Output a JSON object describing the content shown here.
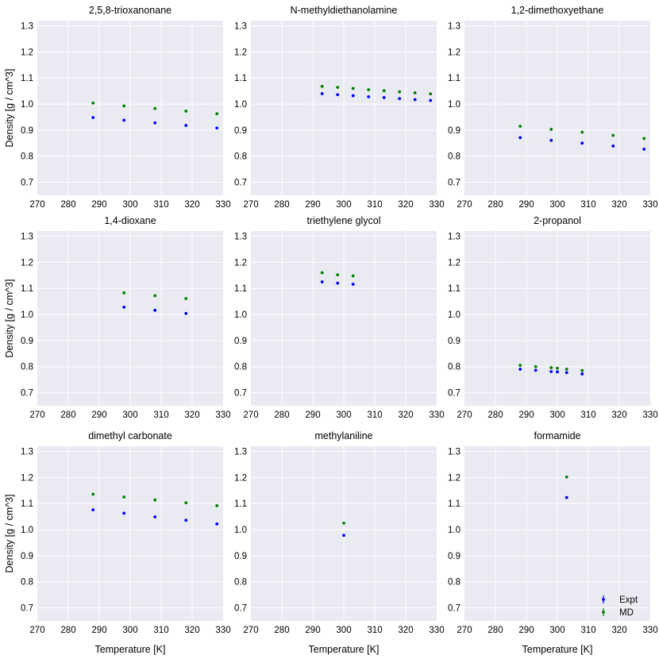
{
  "figure": {
    "xlabel": "Temperature [K]",
    "ylabel": "Density [g / cm^3]"
  },
  "legend": {
    "entries": [
      {
        "label": "Expt",
        "color": "#0000ff"
      },
      {
        "label": "MD",
        "color": "#008000"
      }
    ],
    "location": "lower-right"
  },
  "chart_data": [
    {
      "type": "scatter",
      "title": "2,5,8-trioxanonane",
      "xlim": [
        270,
        330
      ],
      "ylim": [
        0.65,
        1.32
      ],
      "xticks": [
        270,
        280,
        290,
        300,
        310,
        320,
        330
      ],
      "yticks": [
        0.7,
        0.8,
        0.9,
        1.0,
        1.1,
        1.2,
        1.3
      ],
      "series": [
        {
          "name": "Expt",
          "color": "#0000ff",
          "x": [
            288,
            298,
            308,
            318,
            328
          ],
          "y": [
            0.948,
            0.938,
            0.928,
            0.918,
            0.908
          ]
        },
        {
          "name": "MD",
          "color": "#008000",
          "x": [
            288,
            298,
            308,
            318,
            328
          ],
          "y": [
            1.004,
            0.993,
            0.983,
            0.973,
            0.963
          ]
        }
      ]
    },
    {
      "type": "scatter",
      "title": "N-methyldiethanolamine",
      "xlim": [
        270,
        330
      ],
      "ylim": [
        0.65,
        1.32
      ],
      "xticks": [
        270,
        280,
        290,
        300,
        310,
        320,
        330
      ],
      "yticks": [
        0.7,
        0.8,
        0.9,
        1.0,
        1.1,
        1.2,
        1.3
      ],
      "series": [
        {
          "name": "Expt",
          "color": "#0000ff",
          "x": [
            293,
            298,
            303,
            308,
            313,
            318,
            323,
            328
          ],
          "y": [
            1.04,
            1.036,
            1.032,
            1.028,
            1.025,
            1.021,
            1.017,
            1.014
          ]
        },
        {
          "name": "MD",
          "color": "#008000",
          "x": [
            293,
            298,
            303,
            308,
            313,
            318,
            323,
            328
          ],
          "y": [
            1.068,
            1.064,
            1.06,
            1.055,
            1.051,
            1.047,
            1.043,
            1.039
          ]
        }
      ]
    },
    {
      "type": "scatter",
      "title": "1,2-dimethoxyethane",
      "xlim": [
        270,
        330
      ],
      "ylim": [
        0.65,
        1.32
      ],
      "xticks": [
        270,
        280,
        290,
        300,
        310,
        320,
        330
      ],
      "yticks": [
        0.7,
        0.8,
        0.9,
        1.0,
        1.1,
        1.2,
        1.3
      ],
      "series": [
        {
          "name": "Expt",
          "color": "#0000ff",
          "x": [
            288,
            298,
            308,
            318,
            328
          ],
          "y": [
            0.871,
            0.861,
            0.85,
            0.839,
            0.827
          ]
        },
        {
          "name": "MD",
          "color": "#008000",
          "x": [
            288,
            298,
            308,
            318,
            328
          ],
          "y": [
            0.915,
            0.903,
            0.892,
            0.88,
            0.868
          ]
        }
      ]
    },
    {
      "type": "scatter",
      "title": "1,4-dioxane",
      "xlim": [
        270,
        330
      ],
      "ylim": [
        0.65,
        1.32
      ],
      "xticks": [
        270,
        280,
        290,
        300,
        310,
        320,
        330
      ],
      "yticks": [
        0.7,
        0.8,
        0.9,
        1.0,
        1.1,
        1.2,
        1.3
      ],
      "series": [
        {
          "name": "Expt",
          "color": "#0000ff",
          "x": [
            298,
            308,
            318
          ],
          "y": [
            1.028,
            1.016,
            1.004
          ]
        },
        {
          "name": "MD",
          "color": "#008000",
          "x": [
            298,
            308,
            318
          ],
          "y": [
            1.083,
            1.072,
            1.061
          ]
        }
      ]
    },
    {
      "type": "scatter",
      "title": "triethylene glycol",
      "xlim": [
        270,
        330
      ],
      "ylim": [
        0.65,
        1.32
      ],
      "xticks": [
        270,
        280,
        290,
        300,
        310,
        320,
        330
      ],
      "yticks": [
        0.7,
        0.8,
        0.9,
        1.0,
        1.1,
        1.2,
        1.3
      ],
      "series": [
        {
          "name": "Expt",
          "color": "#0000ff",
          "x": [
            293,
            298,
            303
          ],
          "y": [
            1.125,
            1.12,
            1.116
          ]
        },
        {
          "name": "MD",
          "color": "#008000",
          "x": [
            293,
            298,
            303
          ],
          "y": [
            1.16,
            1.152,
            1.148
          ]
        }
      ]
    },
    {
      "type": "scatter",
      "title": "2-propanol",
      "xlim": [
        270,
        330
      ],
      "ylim": [
        0.65,
        1.32
      ],
      "xticks": [
        270,
        280,
        290,
        300,
        310,
        320,
        330
      ],
      "yticks": [
        0.7,
        0.8,
        0.9,
        1.0,
        1.1,
        1.2,
        1.3
      ],
      "series": [
        {
          "name": "Expt",
          "color": "#0000ff",
          "x": [
            288,
            293,
            298,
            300,
            303,
            308
          ],
          "y": [
            0.79,
            0.786,
            0.781,
            0.78,
            0.777,
            0.772
          ]
        },
        {
          "name": "MD",
          "color": "#008000",
          "x": [
            288,
            293,
            298,
            300,
            303,
            308
          ],
          "y": [
            0.805,
            0.8,
            0.796,
            0.794,
            0.79,
            0.785
          ]
        }
      ]
    },
    {
      "type": "scatter",
      "title": "dimethyl carbonate",
      "xlim": [
        270,
        330
      ],
      "ylim": [
        0.65,
        1.32
      ],
      "xticks": [
        270,
        280,
        290,
        300,
        310,
        320,
        330
      ],
      "yticks": [
        0.7,
        0.8,
        0.9,
        1.0,
        1.1,
        1.2,
        1.3
      ],
      "series": [
        {
          "name": "Expt",
          "color": "#0000ff",
          "x": [
            288,
            298,
            308,
            318,
            328
          ],
          "y": [
            1.076,
            1.063,
            1.049,
            1.036,
            1.022
          ]
        },
        {
          "name": "MD",
          "color": "#008000",
          "x": [
            288,
            298,
            308,
            318,
            328
          ],
          "y": [
            1.136,
            1.125,
            1.114,
            1.103,
            1.092
          ]
        }
      ]
    },
    {
      "type": "scatter",
      "title": "methylaniline",
      "xlim": [
        270,
        330
      ],
      "ylim": [
        0.65,
        1.32
      ],
      "xticks": [
        270,
        280,
        290,
        300,
        310,
        320,
        330
      ],
      "yticks": [
        0.7,
        0.8,
        0.9,
        1.0,
        1.1,
        1.2,
        1.3
      ],
      "series": [
        {
          "name": "Expt",
          "color": "#0000ff",
          "x": [
            300
          ],
          "y": [
            0.978
          ]
        },
        {
          "name": "MD",
          "color": "#008000",
          "x": [
            300
          ],
          "y": [
            1.025
          ]
        }
      ]
    },
    {
      "type": "scatter",
      "title": "formamide",
      "xlim": [
        270,
        330
      ],
      "ylim": [
        0.65,
        1.32
      ],
      "xticks": [
        270,
        280,
        290,
        300,
        310,
        320,
        330
      ],
      "yticks": [
        0.7,
        0.8,
        0.9,
        1.0,
        1.1,
        1.2,
        1.3
      ],
      "series": [
        {
          "name": "Expt",
          "color": "#0000ff",
          "x": [
            303
          ],
          "y": [
            1.123
          ]
        },
        {
          "name": "MD",
          "color": "#008000",
          "x": [
            303
          ],
          "y": [
            1.202
          ]
        }
      ]
    }
  ]
}
